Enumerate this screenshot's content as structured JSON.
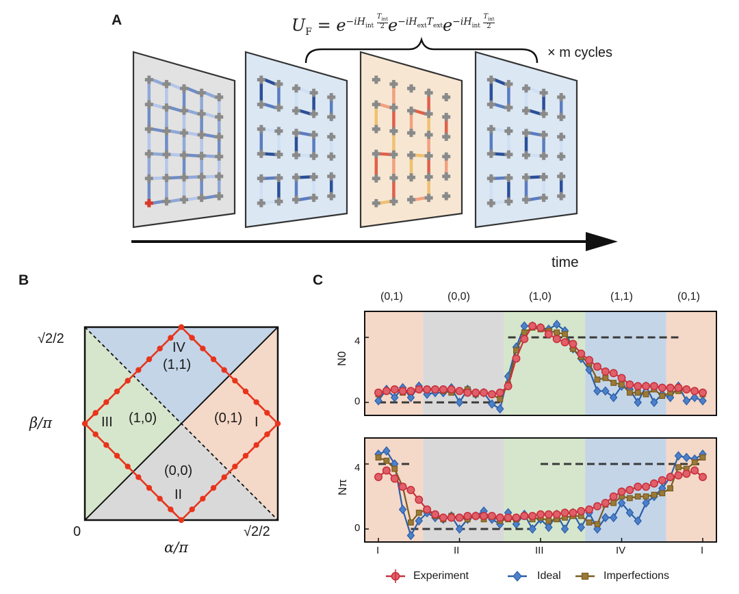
{
  "panels": {
    "a": {
      "letter": "A",
      "formula_lhs": "U",
      "formula_lhs_sub": "F",
      "formula_rhs_parts": [
        "e",
        "−iH",
        "int",
        "T",
        "int",
        "2",
        "e",
        "−iH",
        "ext",
        "T",
        "ext",
        "e",
        "−iH",
        "int",
        "T",
        "int",
        "2"
      ],
      "cycles_label": "× m cycles",
      "time_label": "time"
    },
    "b": {
      "letter": "B",
      "x_axis_label": "α/π",
      "y_axis_label": "β/π",
      "x_tick_left": "0",
      "x_tick_right": "√2/2",
      "y_tick_top": "√2/2",
      "regions": [
        {
          "roman": "I",
          "invariant": "(0,1)"
        },
        {
          "roman": "II",
          "invariant": "(0,0)"
        },
        {
          "roman": "III",
          "invariant": "(1,0)"
        },
        {
          "roman": "IV",
          "invariant": "(1,1)"
        }
      ]
    },
    "c": {
      "letter": "C",
      "segment_labels": [
        "(0,1)",
        "(0,0)",
        "(1,0)",
        "(1,1)",
        "(0,1)"
      ],
      "x_tick_labels": [
        "I",
        "II",
        "III",
        "IV",
        "I"
      ]
    }
  },
  "colors": {
    "orange_region": "#f4d8c8",
    "gray_region": "#d9d9d9",
    "green_region": "#d6e6cc",
    "blue_region": "#c4d5e8",
    "path_red": "#e8341c",
    "experiment": "#c8303c",
    "ideal": "#2a5ea8",
    "imperfections": "#7a5a1e"
  },
  "chart_data": [
    {
      "type": "line",
      "title": "",
      "xlabel": "",
      "ylabel": "N0",
      "ylim": [
        -0.8,
        5.6
      ],
      "yticks": [
        0,
        4
      ],
      "x": [
        0,
        1,
        2,
        3,
        4,
        5,
        6,
        7,
        8,
        9,
        10,
        11,
        12,
        13,
        14,
        15,
        16,
        17,
        18,
        19,
        20,
        21,
        22,
        23,
        24,
        25,
        26,
        27,
        28,
        29,
        30,
        31,
        32,
        33,
        34,
        35,
        36,
        37,
        38,
        39,
        40
      ],
      "series": [
        {
          "name": "Experiment",
          "values": [
            0.6,
            0.7,
            0.8,
            0.7,
            0.7,
            0.8,
            0.8,
            0.8,
            0.8,
            0.8,
            0.7,
            0.6,
            0.6,
            0.6,
            0.5,
            0.6,
            1.0,
            2.7,
            3.9,
            4.7,
            4.6,
            4.2,
            3.9,
            3.7,
            3.6,
            3.0,
            2.6,
            2.2,
            1.9,
            1.8,
            1.5,
            1.1,
            1.0,
            1.0,
            1.0,
            0.9,
            0.9,
            0.9,
            0.8,
            0.7,
            0.6
          ]
        },
        {
          "name": "Ideal",
          "values": [
            0.1,
            0.8,
            0.3,
            0.9,
            0.3,
            1.0,
            0.5,
            0.6,
            0.6,
            0.9,
            0.0,
            0.8,
            0.5,
            0.6,
            -0.1,
            -0.4,
            1.6,
            3.4,
            4.7,
            4.7,
            4.6,
            4.5,
            4.8,
            4.4,
            3.3,
            2.7,
            2.0,
            0.7,
            0.7,
            0.3,
            1.0,
            0.8,
            0.0,
            1.0,
            0.0,
            0.5,
            0.3,
            1.0,
            0.1,
            0.3,
            0.1
          ]
        },
        {
          "name": "Imperfections",
          "values": [
            0.5,
            0.7,
            0.8,
            0.6,
            0.7,
            0.8,
            0.8,
            0.8,
            0.7,
            0.6,
            0.7,
            0.8,
            0.5,
            0.6,
            0.5,
            0.2,
            1.1,
            3.2,
            4.3,
            4.6,
            4.5,
            4.4,
            4.3,
            4.2,
            3.3,
            2.8,
            2.4,
            1.4,
            1.5,
            1.2,
            1.1,
            0.6,
            0.6,
            0.5,
            0.8,
            0.4,
            0.6,
            0.7,
            0.8,
            0.7,
            0.5
          ]
        }
      ],
      "guides": [
        {
          "from": 0,
          "to": 15,
          "y": 0
        },
        {
          "from": 16,
          "to": 37,
          "y": 4
        }
      ]
    },
    {
      "type": "line",
      "title": "",
      "xlabel": "",
      "ylabel": "Nπ",
      "ylim": [
        -0.8,
        5.6
      ],
      "yticks": [
        0,
        4
      ],
      "categories": [
        "I",
        "II",
        "III",
        "IV",
        "I"
      ],
      "x": [
        0,
        1,
        2,
        3,
        4,
        5,
        6,
        7,
        8,
        9,
        10,
        11,
        12,
        13,
        14,
        15,
        16,
        17,
        18,
        19,
        20,
        21,
        22,
        23,
        24,
        25,
        26,
        27,
        28,
        29,
        30,
        31,
        32,
        33,
        34,
        35,
        36,
        37,
        38,
        39,
        40
      ],
      "series": [
        {
          "name": "Experiment",
          "values": [
            3.2,
            3.6,
            3.1,
            2.6,
            2.4,
            1.8,
            1.2,
            0.9,
            0.7,
            0.7,
            0.7,
            0.8,
            0.8,
            0.8,
            0.8,
            0.7,
            0.7,
            0.7,
            0.8,
            0.8,
            0.9,
            0.9,
            0.9,
            1.0,
            1.0,
            1.1,
            1.2,
            1.4,
            1.6,
            2.0,
            2.3,
            2.4,
            2.6,
            2.6,
            2.8,
            3.0,
            3.2,
            3.3,
            3.4,
            3.6,
            3.2
          ]
        },
        {
          "name": "Ideal",
          "values": [
            4.6,
            4.8,
            4.0,
            1.2,
            -0.4,
            0.5,
            1.0,
            0.7,
            0.6,
            0.8,
            0.0,
            0.6,
            0.8,
            1.1,
            0.6,
            0.3,
            1.0,
            0.3,
            0.9,
            0.0,
            0.6,
            0.1,
            0.9,
            0.0,
            1.0,
            0.1,
            1.0,
            0.0,
            0.7,
            0.7,
            1.6,
            1.0,
            0.5,
            1.6,
            2.0,
            2.5,
            3.2,
            4.5,
            4.4,
            4.3,
            4.6
          ]
        },
        {
          "name": "Imperfections",
          "values": [
            4.4,
            4.2,
            3.7,
            2.6,
            0.4,
            1.0,
            1.2,
            0.8,
            0.6,
            0.8,
            0.7,
            0.6,
            0.8,
            0.6,
            0.8,
            0.5,
            0.6,
            0.6,
            0.8,
            0.6,
            0.7,
            0.5,
            0.6,
            0.7,
            0.8,
            0.8,
            0.4,
            0.3,
            1.5,
            1.6,
            2.0,
            1.9,
            2.0,
            2.0,
            2.1,
            2.2,
            2.5,
            3.8,
            3.7,
            4.1,
            4.4
          ]
        }
      ],
      "guides": [
        {
          "from": 0,
          "to": 4,
          "y": 4
        },
        {
          "from": 4,
          "to": 19,
          "y": 0
        },
        {
          "from": 20,
          "to": 40,
          "y": 4
        }
      ]
    }
  ],
  "legend": [
    "Experiment",
    "Ideal",
    "Imperfections"
  ]
}
